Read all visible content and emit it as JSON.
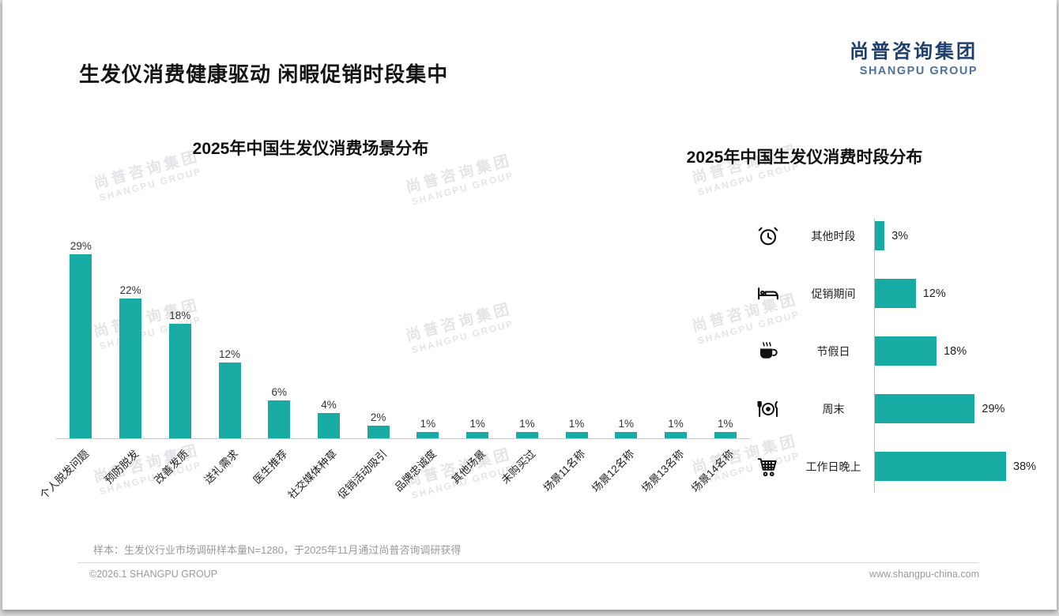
{
  "header": {
    "title": "生发仪消费健康驱动 闲暇促销时段集中",
    "logo_cn": "尚普咨询集团",
    "logo_en": "SHANGPU GROUP"
  },
  "watermark": {
    "line1": "尚普咨询集团",
    "line2": "SHANGPU GROUP"
  },
  "theme": {
    "bar_color": "#17aba3",
    "logo_color": "#1c3f6e",
    "icon_color": "#111111"
  },
  "chart_data": [
    {
      "type": "bar",
      "title": "2025年中国生发仪消费场景分布",
      "categories": [
        "个人脱发问题",
        "预防脱发",
        "改善发质",
        "送礼需求",
        "医生推荐",
        "社交媒体种草",
        "促销活动吸引",
        "品牌忠诚度",
        "其他场景",
        "未购买过",
        "场景11名称",
        "场景12名称",
        "场景13名称",
        "场景14名称"
      ],
      "values": [
        29,
        22,
        18,
        12,
        6,
        4,
        2,
        1,
        1,
        1,
        1,
        1,
        1,
        1
      ],
      "unit": "%",
      "ylim": [
        0,
        32
      ],
      "bar_color": "#17aba3",
      "grid": false,
      "legend": "none"
    },
    {
      "type": "bar-horizontal",
      "title": "2025年中国生发仪消费时段分布",
      "categories": [
        "其他时段",
        "促销期间",
        "节假日",
        "周末",
        "工作日晚上"
      ],
      "values": [
        3,
        12,
        18,
        29,
        38
      ],
      "icons": [
        "alarm-clock",
        "bed",
        "coffee",
        "dining",
        "shopping-cart"
      ],
      "unit": "%",
      "xlim": [
        0,
        42
      ],
      "bar_color": "#17aba3",
      "grid": false,
      "legend": "none"
    }
  ],
  "footer": {
    "note": "样本：生发仪行业市场调研样本量N=1280，于2025年11月通过尚普咨询调研获得",
    "copyright": "©2026.1 SHANGPU GROUP",
    "website": "www.shangpu-china.com"
  }
}
